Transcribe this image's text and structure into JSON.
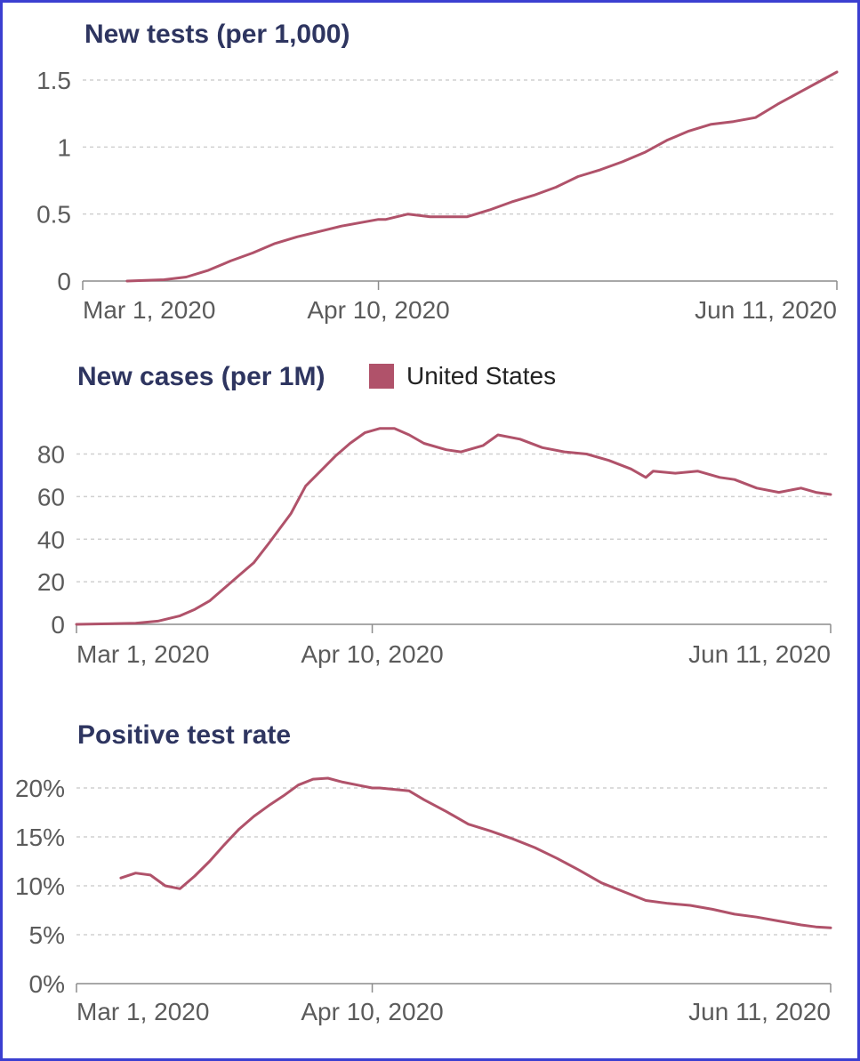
{
  "colors": {
    "series": "#b0526a",
    "frame": "#3b3fd1",
    "title": "#2e3560"
  },
  "chart_data": [
    {
      "type": "line",
      "title": "New tests (per 1,000)",
      "x_ticks": [
        "Mar 1, 2020",
        "Apr 10, 2020",
        "Jun 11, 2020"
      ],
      "y_ticks": [
        "0",
        "0.5",
        "1",
        "1.5"
      ],
      "ylim": [
        0,
        1.5
      ],
      "xlim": [
        "2020-03-01",
        "2020-06-11"
      ],
      "grid": true,
      "series": [
        {
          "x": [
            "2020-03-07",
            "2020-03-12",
            "2020-03-15",
            "2020-03-18",
            "2020-03-21",
            "2020-03-24",
            "2020-03-27",
            "2020-03-30",
            "2020-04-02",
            "2020-04-05",
            "2020-04-08",
            "2020-04-10",
            "2020-04-11",
            "2020-04-14",
            "2020-04-17",
            "2020-04-20",
            "2020-04-22",
            "2020-04-25",
            "2020-04-28",
            "2020-05-01",
            "2020-05-04",
            "2020-05-07",
            "2020-05-10",
            "2020-05-13",
            "2020-05-16",
            "2020-05-19",
            "2020-05-22",
            "2020-05-25",
            "2020-05-28",
            "2020-05-31",
            "2020-06-03",
            "2020-06-06",
            "2020-06-09",
            "2020-06-11"
          ],
          "values": [
            0,
            0.01,
            0.03,
            0.08,
            0.15,
            0.21,
            0.28,
            0.33,
            0.37,
            0.41,
            0.44,
            0.46,
            0.46,
            0.5,
            0.48,
            0.48,
            0.48,
            0.53,
            0.59,
            0.64,
            0.7,
            0.78,
            0.83,
            0.89,
            0.96,
            1.05,
            1.12,
            1.17,
            1.19,
            1.22,
            1.32,
            1.41,
            1.5,
            1.56
          ]
        }
      ]
    },
    {
      "type": "line",
      "title": "New cases (per 1M)",
      "legend": [
        {
          "name": "United States",
          "placement": "top"
        }
      ],
      "x_ticks": [
        "Mar 1, 2020",
        "Apr 10, 2020",
        "Jun 11, 2020"
      ],
      "y_ticks": [
        "0",
        "20",
        "40",
        "60",
        "80"
      ],
      "ylim": [
        0,
        94
      ],
      "xlim": [
        "2020-03-01",
        "2020-06-11"
      ],
      "grid": true,
      "series": [
        {
          "name": "United States",
          "x": [
            "2020-03-01",
            "2020-03-09",
            "2020-03-12",
            "2020-03-15",
            "2020-03-17",
            "2020-03-19",
            "2020-03-21",
            "2020-03-23",
            "2020-03-25",
            "2020-03-27",
            "2020-03-30",
            "2020-04-01",
            "2020-04-03",
            "2020-04-05",
            "2020-04-07",
            "2020-04-09",
            "2020-04-11",
            "2020-04-13",
            "2020-04-15",
            "2020-04-17",
            "2020-04-20",
            "2020-04-22",
            "2020-04-25",
            "2020-04-27",
            "2020-04-30",
            "2020-05-03",
            "2020-05-06",
            "2020-05-09",
            "2020-05-12",
            "2020-05-15",
            "2020-05-17",
            "2020-05-18",
            "2020-05-21",
            "2020-05-24",
            "2020-05-27",
            "2020-05-29",
            "2020-06-01",
            "2020-06-04",
            "2020-06-07",
            "2020-06-09",
            "2020-06-11"
          ],
          "values": [
            0,
            0.5,
            1.5,
            4,
            7,
            11,
            17,
            23,
            29,
            38,
            52,
            65,
            72,
            79,
            85,
            90,
            92,
            92,
            89,
            85,
            82,
            81,
            84,
            89,
            87,
            83,
            81,
            80,
            77,
            73,
            69,
            72,
            71,
            72,
            69,
            68,
            64,
            62,
            64,
            62,
            61
          ]
        }
      ]
    },
    {
      "type": "line",
      "title": "Positive test rate",
      "x_ticks": [
        "Mar 1, 2020",
        "Apr 10, 2020",
        "Jun 11, 2020"
      ],
      "y_ticks": [
        "0%",
        "5%",
        "10%",
        "15%",
        "20%"
      ],
      "ylim": [
        0,
        22
      ],
      "xlim": [
        "2020-03-01",
        "2020-06-11"
      ],
      "grid": true,
      "series": [
        {
          "x": [
            "2020-03-07",
            "2020-03-09",
            "2020-03-11",
            "2020-03-13",
            "2020-03-15",
            "2020-03-17",
            "2020-03-19",
            "2020-03-21",
            "2020-03-23",
            "2020-03-25",
            "2020-03-27",
            "2020-03-29",
            "2020-03-31",
            "2020-04-02",
            "2020-04-04",
            "2020-04-06",
            "2020-04-08",
            "2020-04-10",
            "2020-04-11",
            "2020-04-15",
            "2020-04-17",
            "2020-04-20",
            "2020-04-23",
            "2020-04-26",
            "2020-04-29",
            "2020-05-02",
            "2020-05-05",
            "2020-05-08",
            "2020-05-11",
            "2020-05-14",
            "2020-05-17",
            "2020-05-20",
            "2020-05-23",
            "2020-05-26",
            "2020-05-29",
            "2020-06-01",
            "2020-06-04",
            "2020-06-07",
            "2020-06-09",
            "2020-06-11"
          ],
          "values": [
            10.8,
            11.3,
            11.1,
            10,
            9.7,
            11,
            12.5,
            14.2,
            15.8,
            17.1,
            18.2,
            19.2,
            20.3,
            20.9,
            21.0,
            20.6,
            20.3,
            20.0,
            20.0,
            19.7,
            18.8,
            17.6,
            16.3,
            15.6,
            14.8,
            13.9,
            12.8,
            11.6,
            10.3,
            9.4,
            8.5,
            8.2,
            8.0,
            7.6,
            7.1,
            6.8,
            6.4,
            6.0,
            5.8,
            5.7
          ]
        }
      ]
    }
  ]
}
